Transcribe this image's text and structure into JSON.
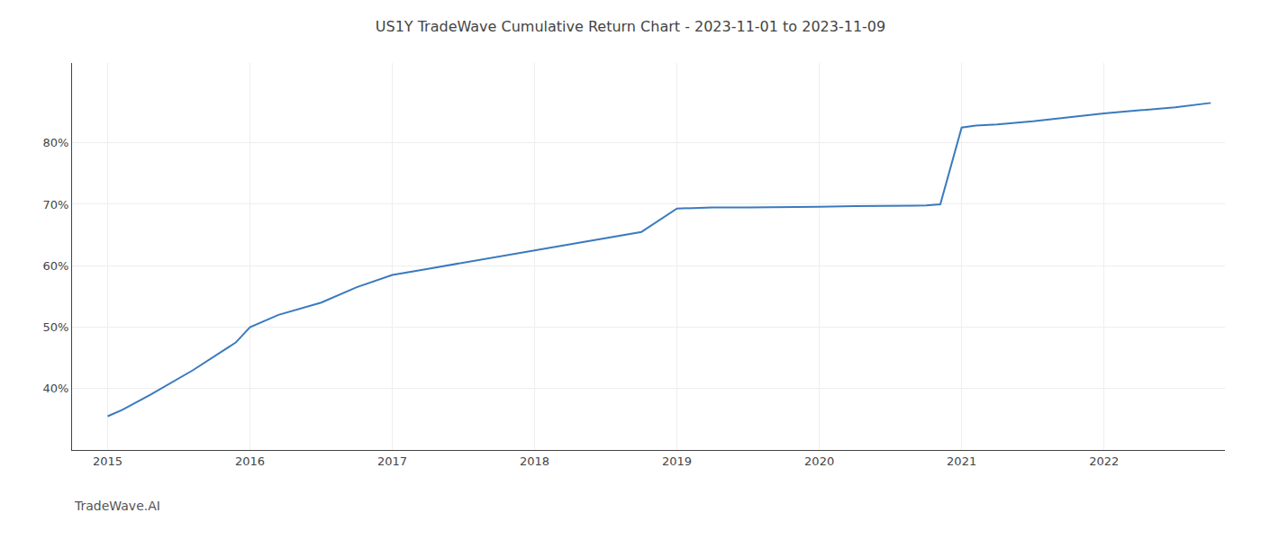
{
  "chart_data": {
    "type": "line",
    "title": "US1Y TradeWave Cumulative Return Chart - 2023-11-01 to 2023-11-09",
    "annotations": [
      "TradeWave.AI"
    ],
    "x": [
      2015.0,
      2015.1,
      2015.3,
      2015.6,
      2015.9,
      2016.0,
      2016.2,
      2016.5,
      2016.75,
      2017.0,
      2017.25,
      2017.5,
      2017.75,
      2018.0,
      2018.25,
      2018.5,
      2018.75,
      2019.0,
      2019.1,
      2019.25,
      2019.5,
      2019.75,
      2020.0,
      2020.25,
      2020.5,
      2020.75,
      2020.85,
      2021.0,
      2021.1,
      2021.25,
      2021.5,
      2021.75,
      2022.0,
      2022.25,
      2022.5,
      2022.75
    ],
    "values": [
      35.5,
      36.5,
      39.0,
      43.0,
      47.5,
      50.0,
      52.0,
      54.0,
      56.5,
      58.5,
      59.5,
      60.5,
      61.5,
      62.5,
      63.5,
      64.5,
      65.5,
      69.3,
      69.4,
      69.5,
      69.5,
      69.5,
      69.6,
      69.7,
      69.7,
      69.8,
      70.0,
      82.5,
      82.8,
      83.0,
      83.5,
      84.2,
      84.8,
      85.3,
      85.8,
      86.5
    ],
    "color": "#3a7abf",
    "xlim": [
      2014.75,
      2022.85
    ],
    "ylim": [
      30,
      93
    ],
    "xticks": [
      2015,
      2016,
      2017,
      2018,
      2019,
      2020,
      2021,
      2022
    ],
    "yticks": [
      {
        "value": 40,
        "label": "40%"
      },
      {
        "value": 50,
        "label": "50%"
      },
      {
        "value": 60,
        "label": "60%"
      },
      {
        "value": 70,
        "label": "70%"
      },
      {
        "value": 80,
        "label": "80%"
      }
    ],
    "grid": true
  }
}
